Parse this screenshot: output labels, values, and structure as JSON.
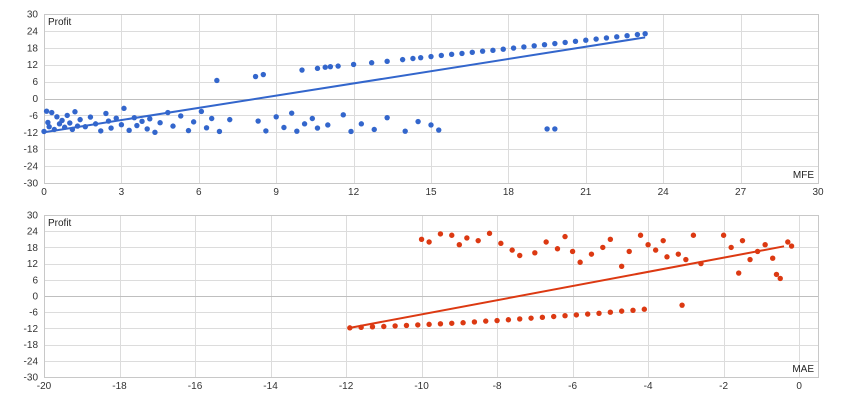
{
  "chart_data": [
    {
      "type": "scatter",
      "ylabel": "Profit",
      "xlabel": "MFE",
      "xlim": [
        0,
        30
      ],
      "ylim": [
        -30,
        30
      ],
      "x_ticks": [
        0,
        3,
        6,
        9,
        12,
        15,
        18,
        21,
        24,
        27,
        30
      ],
      "y_ticks": [
        -30,
        -24,
        -18,
        -12,
        -6,
        0,
        6,
        12,
        18,
        24,
        30
      ],
      "grid": true,
      "point_color": "#3366cc",
      "trendline": {
        "color": "#3366cc",
        "from": [
          0,
          -12
        ],
        "to": [
          23.3,
          21.7
        ]
      },
      "series": [
        {
          "values": [
            [
              0.0,
              -11.7
            ],
            [
              0.1,
              -4.5
            ],
            [
              0.15,
              -8.5
            ],
            [
              0.2,
              -10.0
            ],
            [
              0.3,
              -5.0
            ],
            [
              0.4,
              -11.0
            ],
            [
              0.5,
              -6.5
            ],
            [
              0.6,
              -9.0
            ],
            [
              0.7,
              -7.8
            ],
            [
              0.8,
              -10.2
            ],
            [
              0.9,
              -6.0
            ],
            [
              1.0,
              -8.7
            ],
            [
              1.1,
              -11.0
            ],
            [
              1.2,
              -4.7
            ],
            [
              1.3,
              -9.8
            ],
            [
              1.4,
              -7.5
            ],
            [
              1.6,
              -10.0
            ],
            [
              1.8,
              -6.6
            ],
            [
              2.0,
              -9.0
            ],
            [
              2.2,
              -11.5
            ],
            [
              2.4,
              -5.3
            ],
            [
              2.5,
              -8.0
            ],
            [
              2.6,
              -10.5
            ],
            [
              2.8,
              -7.0
            ],
            [
              3.0,
              -9.3
            ],
            [
              3.1,
              -3.5
            ],
            [
              3.3,
              -11.3
            ],
            [
              3.5,
              -6.8
            ],
            [
              3.6,
              -9.6
            ],
            [
              3.8,
              -8.1
            ],
            [
              4.0,
              -10.8
            ],
            [
              4.1,
              -7.2
            ],
            [
              4.3,
              -12.0
            ],
            [
              4.5,
              -8.6
            ],
            [
              4.8,
              -5.0
            ],
            [
              5.0,
              -9.8
            ],
            [
              5.3,
              -6.2
            ],
            [
              5.6,
              -11.4
            ],
            [
              5.8,
              -8.3
            ],
            [
              6.1,
              -4.6
            ],
            [
              6.3,
              -10.4
            ],
            [
              6.5,
              -7.1
            ],
            [
              6.7,
              6.4
            ],
            [
              6.8,
              -11.7
            ],
            [
              7.2,
              -7.5
            ],
            [
              8.2,
              7.8
            ],
            [
              8.5,
              8.5
            ],
            [
              8.3,
              -8.0
            ],
            [
              8.6,
              -11.5
            ],
            [
              9.0,
              -6.5
            ],
            [
              9.3,
              -10.3
            ],
            [
              9.6,
              -5.2
            ],
            [
              9.8,
              -11.6
            ],
            [
              10.1,
              -9.0
            ],
            [
              10.4,
              -7.1
            ],
            [
              10.6,
              -10.5
            ],
            [
              11.0,
              -9.4
            ],
            [
              11.6,
              -5.8
            ],
            [
              11.9,
              -11.7
            ],
            [
              12.3,
              -9.0
            ],
            [
              12.8,
              -11.0
            ],
            [
              13.3,
              -6.8
            ],
            [
              14.0,
              -11.6
            ],
            [
              14.5,
              -8.2
            ],
            [
              15.0,
              -9.4
            ],
            [
              15.3,
              -11.2
            ],
            [
              19.5,
              -10.8
            ],
            [
              19.8,
              -10.8
            ],
            [
              10.0,
              10.1
            ],
            [
              10.6,
              10.7
            ],
            [
              10.9,
              11.1
            ],
            [
              11.1,
              11.3
            ],
            [
              11.4,
              11.5
            ],
            [
              12.0,
              12.1
            ],
            [
              12.7,
              12.7
            ],
            [
              13.3,
              13.2
            ],
            [
              13.9,
              13.8
            ],
            [
              14.3,
              14.2
            ],
            [
              14.6,
              14.5
            ],
            [
              15.0,
              14.9
            ],
            [
              15.4,
              15.3
            ],
            [
              15.8,
              15.7
            ],
            [
              16.2,
              16.0
            ],
            [
              16.6,
              16.4
            ],
            [
              17.0,
              16.8
            ],
            [
              17.4,
              17.1
            ],
            [
              17.8,
              17.5
            ],
            [
              18.2,
              17.9
            ],
            [
              18.6,
              18.3
            ],
            [
              19.0,
              18.7
            ],
            [
              19.4,
              19.1
            ],
            [
              19.8,
              19.5
            ],
            [
              20.2,
              19.9
            ],
            [
              20.6,
              20.3
            ],
            [
              21.0,
              20.7
            ],
            [
              21.4,
              21.1
            ],
            [
              21.8,
              21.5
            ],
            [
              22.2,
              21.9
            ],
            [
              22.6,
              22.3
            ],
            [
              23.0,
              22.7
            ],
            [
              23.3,
              23.0
            ]
          ]
        }
      ]
    },
    {
      "type": "scatter",
      "ylabel": "Profit",
      "xlabel": "MAE",
      "xlim": [
        -20,
        0.5
      ],
      "ylim": [
        -30,
        30
      ],
      "x_ticks": [
        -20,
        -18,
        -16,
        -14,
        -12,
        -10,
        -8,
        -6,
        -4,
        -2,
        0
      ],
      "y_ticks": [
        -30,
        -24,
        -18,
        -12,
        -6,
        0,
        6,
        12,
        18,
        24,
        30
      ],
      "grid": true,
      "point_color": "#dc3912",
      "trendline": {
        "color": "#dc3912",
        "from": [
          -11.9,
          -11.8
        ],
        "to": [
          -0.4,
          18.4
        ]
      },
      "series": [
        {
          "values": [
            [
              -11.9,
              -11.8
            ],
            [
              -11.6,
              -11.6
            ],
            [
              -11.3,
              -11.4
            ],
            [
              -11.0,
              -11.3
            ],
            [
              -10.7,
              -11.1
            ],
            [
              -10.4,
              -10.9
            ],
            [
              -10.1,
              -10.7
            ],
            [
              -9.8,
              -10.5
            ],
            [
              -9.5,
              -10.3
            ],
            [
              -9.2,
              -10.1
            ],
            [
              -8.9,
              -9.9
            ],
            [
              -8.6,
              -9.6
            ],
            [
              -8.3,
              -9.3
            ],
            [
              -8.0,
              -9.1
            ],
            [
              -7.7,
              -8.8
            ],
            [
              -7.4,
              -8.5
            ],
            [
              -7.1,
              -8.2
            ],
            [
              -6.8,
              -7.9
            ],
            [
              -6.5,
              -7.6
            ],
            [
              -6.2,
              -7.3
            ],
            [
              -5.9,
              -7.0
            ],
            [
              -5.6,
              -6.7
            ],
            [
              -5.3,
              -6.4
            ],
            [
              -5.0,
              -6.0
            ],
            [
              -4.7,
              -5.6
            ],
            [
              -4.4,
              -5.3
            ],
            [
              -4.1,
              -4.9
            ],
            [
              -3.1,
              -3.4
            ],
            [
              -10.0,
              21.0
            ],
            [
              -9.8,
              20.0
            ],
            [
              -9.5,
              23.0
            ],
            [
              -9.2,
              22.5
            ],
            [
              -9.0,
              19.0
            ],
            [
              -8.8,
              21.5
            ],
            [
              -8.5,
              20.5
            ],
            [
              -8.2,
              23.2
            ],
            [
              -7.9,
              19.5
            ],
            [
              -7.6,
              17.0
            ],
            [
              -7.4,
              15.0
            ],
            [
              -7.0,
              16.0
            ],
            [
              -6.7,
              20.0
            ],
            [
              -6.4,
              17.5
            ],
            [
              -6.2,
              22.0
            ],
            [
              -6.0,
              16.5
            ],
            [
              -5.8,
              12.5
            ],
            [
              -5.5,
              15.5
            ],
            [
              -5.2,
              18.0
            ],
            [
              -5.0,
              21.0
            ],
            [
              -4.7,
              11.0
            ],
            [
              -4.5,
              16.5
            ],
            [
              -4.2,
              22.5
            ],
            [
              -4.0,
              19.0
            ],
            [
              -3.8,
              17.0
            ],
            [
              -3.6,
              20.5
            ],
            [
              -3.5,
              14.5
            ],
            [
              -3.2,
              15.5
            ],
            [
              -3.0,
              13.5
            ],
            [
              -2.8,
              22.5
            ],
            [
              -2.6,
              12.0
            ],
            [
              -2.0,
              22.5
            ],
            [
              -1.8,
              18.0
            ],
            [
              -1.6,
              8.5
            ],
            [
              -1.5,
              20.5
            ],
            [
              -1.3,
              13.5
            ],
            [
              -1.1,
              16.5
            ],
            [
              -0.9,
              19.0
            ],
            [
              -0.7,
              14.0
            ],
            [
              -0.6,
              8.0
            ],
            [
              -0.5,
              6.5
            ],
            [
              -0.3,
              20.0
            ],
            [
              -0.2,
              18.5
            ]
          ]
        }
      ]
    }
  ]
}
